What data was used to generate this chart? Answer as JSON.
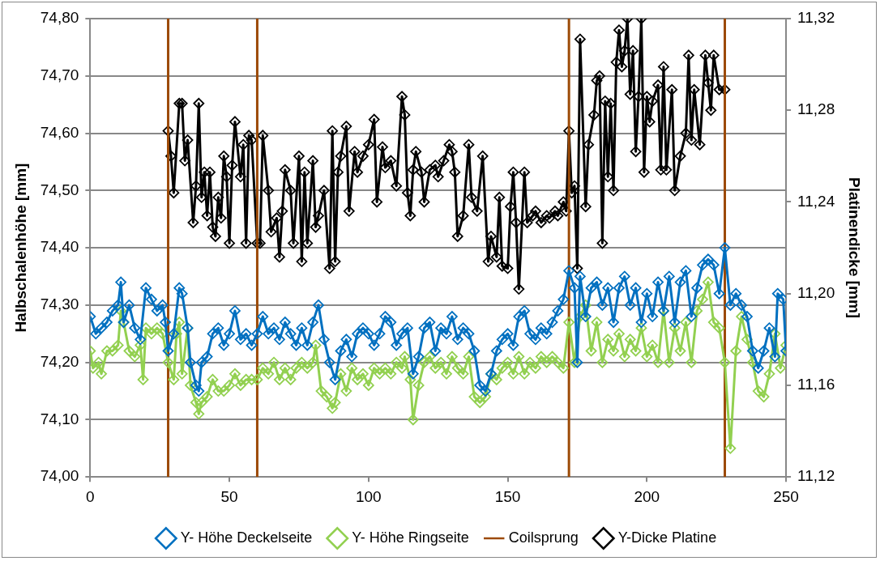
{
  "chart_data": {
    "type": "line",
    "ylabel": "Halbschalenhöhe [mm]",
    "y2label": "Platinendicke [mm]",
    "xlim": [
      0,
      250
    ],
    "xticks": [
      0,
      50,
      100,
      150,
      200,
      250
    ],
    "ylim": [
      74.0,
      74.8
    ],
    "yticks": [
      {
        "value": 74.0,
        "label": "74,00"
      },
      {
        "value": 74.1,
        "label": "74,10"
      },
      {
        "value": 74.2,
        "label": "74,20"
      },
      {
        "value": 74.3,
        "label": "74,30"
      },
      {
        "value": 74.4,
        "label": "74,40"
      },
      {
        "value": 74.5,
        "label": "74,50"
      },
      {
        "value": 74.6,
        "label": "74,60"
      },
      {
        "value": 74.7,
        "label": "74,70"
      },
      {
        "value": 74.8,
        "label": "74,80"
      }
    ],
    "y2lim": [
      11.12,
      11.32
    ],
    "y2ticks": [
      {
        "value": 11.12,
        "label": "11,12"
      },
      {
        "value": 11.16,
        "label": "11,16"
      },
      {
        "value": 11.2,
        "label": "11,20"
      },
      {
        "value": 11.24,
        "label": "11,24"
      },
      {
        "value": 11.28,
        "label": "11,28"
      },
      {
        "value": 11.32,
        "label": "11,32"
      }
    ],
    "grid": "y",
    "legend": "bottom",
    "marker": "diamond",
    "line_style": "solid",
    "series": [
      {
        "name": "Y- Höhe Deckelseite",
        "color": "#0070c0",
        "x": [
          0,
          2,
          4,
          6,
          8,
          10,
          11,
          12,
          14,
          16,
          18,
          20,
          22,
          24,
          26,
          27,
          28,
          30,
          32,
          33,
          35,
          36,
          38,
          39,
          40,
          42,
          44,
          46,
          48,
          50,
          52,
          54,
          56,
          58,
          60,
          62,
          64,
          66,
          68,
          70,
          72,
          74,
          76,
          78,
          80,
          82,
          84,
          86,
          88,
          90,
          92,
          94,
          96,
          98,
          100,
          102,
          104,
          106,
          108,
          110,
          112,
          114,
          116,
          118,
          120,
          122,
          124,
          126,
          128,
          130,
          132,
          134,
          136,
          138,
          140,
          142,
          144,
          146,
          148,
          150,
          152,
          154,
          156,
          158,
          160,
          162,
          164,
          166,
          168,
          170,
          172,
          174,
          175,
          176,
          178,
          180,
          182,
          184,
          186,
          188,
          190,
          192,
          194,
          196,
          198,
          200,
          202,
          204,
          206,
          208,
          210,
          212,
          214,
          216,
          218,
          220,
          222,
          224,
          226,
          228,
          230,
          232,
          234,
          236,
          238,
          240,
          242,
          244,
          246,
          247,
          249,
          250
        ],
        "values": [
          74.28,
          74.25,
          74.26,
          74.27,
          74.29,
          74.3,
          74.34,
          74.27,
          74.3,
          74.26,
          74.24,
          74.33,
          74.31,
          74.29,
          74.3,
          74.27,
          74.22,
          74.25,
          74.33,
          74.32,
          74.26,
          74.2,
          74.16,
          74.15,
          74.2,
          74.21,
          74.25,
          74.26,
          74.23,
          74.25,
          74.29,
          74.24,
          74.25,
          74.23,
          74.25,
          74.28,
          74.25,
          74.26,
          74.24,
          74.27,
          74.25,
          74.23,
          74.26,
          74.23,
          74.27,
          74.3,
          74.24,
          74.2,
          74.17,
          74.22,
          74.24,
          74.21,
          74.25,
          74.26,
          74.25,
          74.23,
          74.25,
          74.28,
          74.27,
          74.23,
          74.25,
          74.26,
          74.18,
          74.21,
          74.26,
          74.27,
          74.22,
          74.26,
          74.25,
          74.28,
          74.24,
          74.26,
          74.25,
          74.22,
          74.16,
          74.15,
          74.18,
          74.22,
          74.24,
          74.25,
          74.23,
          74.28,
          74.29,
          74.25,
          74.24,
          74.26,
          74.25,
          74.27,
          74.29,
          74.31,
          74.36,
          74.33,
          74.2,
          74.35,
          74.28,
          74.33,
          74.34,
          74.3,
          74.33,
          74.27,
          74.33,
          74.35,
          74.3,
          74.33,
          74.27,
          74.32,
          74.28,
          74.34,
          74.29,
          74.35,
          74.27,
          74.34,
          74.36,
          74.28,
          74.33,
          74.37,
          74.38,
          74.37,
          74.32,
          74.4,
          74.3,
          74.32,
          74.3,
          74.28,
          74.22,
          74.19,
          74.22,
          74.26,
          74.21,
          74.32,
          74.31,
          74.22
        ]
      },
      {
        "name": "Y- Höhe Ringseite",
        "color": "#92d050",
        "x": [
          0,
          1,
          3,
          4,
          6,
          8,
          10,
          11,
          12,
          14,
          16,
          18,
          19,
          20,
          22,
          24,
          26,
          28,
          30,
          31,
          32,
          33,
          35,
          36,
          38,
          39,
          40,
          42,
          44,
          46,
          48,
          50,
          52,
          54,
          56,
          58,
          60,
          62,
          64,
          66,
          68,
          70,
          72,
          74,
          76,
          78,
          80,
          81,
          83,
          85,
          87,
          88,
          90,
          92,
          94,
          96,
          98,
          100,
          102,
          104,
          106,
          108,
          110,
          112,
          113,
          115,
          116,
          118,
          120,
          122,
          124,
          126,
          128,
          130,
          132,
          134,
          136,
          138,
          140,
          142,
          144,
          146,
          148,
          150,
          152,
          154,
          156,
          158,
          160,
          162,
          164,
          166,
          168,
          170,
          172,
          174,
          176,
          178,
          180,
          182,
          184,
          186,
          188,
          190,
          192,
          194,
          196,
          198,
          200,
          202,
          204,
          206,
          208,
          210,
          212,
          214,
          216,
          218,
          220,
          222,
          224,
          226,
          228,
          230,
          232,
          234,
          236,
          238,
          240,
          242,
          244,
          246,
          248,
          250
        ],
        "values": [
          74.22,
          74.19,
          74.2,
          74.18,
          74.22,
          74.22,
          74.23,
          74.29,
          74.27,
          74.22,
          74.21,
          74.23,
          74.17,
          74.26,
          74.25,
          74.26,
          74.25,
          74.2,
          74.17,
          74.25,
          74.27,
          74.18,
          74.26,
          74.16,
          74.13,
          74.11,
          74.13,
          74.14,
          74.17,
          74.15,
          74.15,
          74.16,
          74.18,
          74.16,
          74.17,
          74.17,
          74.17,
          74.19,
          74.18,
          74.2,
          74.17,
          74.19,
          74.17,
          74.19,
          74.2,
          74.19,
          74.2,
          74.23,
          74.15,
          74.14,
          74.12,
          74.13,
          74.18,
          74.15,
          74.19,
          74.17,
          74.18,
          74.16,
          74.19,
          74.18,
          74.19,
          74.18,
          74.2,
          74.19,
          74.21,
          74.17,
          74.1,
          74.16,
          74.2,
          74.21,
          74.19,
          74.2,
          74.18,
          74.21,
          74.19,
          74.18,
          74.21,
          74.14,
          74.13,
          74.14,
          74.18,
          74.17,
          74.19,
          74.2,
          74.18,
          74.21,
          74.18,
          74.2,
          74.19,
          74.21,
          74.2,
          74.21,
          74.2,
          74.19,
          74.27,
          74.2,
          74.28,
          74.3,
          74.22,
          74.27,
          74.2,
          74.24,
          74.22,
          74.25,
          74.21,
          74.24,
          74.22,
          74.26,
          74.21,
          74.23,
          74.2,
          74.29,
          74.2,
          74.26,
          74.22,
          74.27,
          74.2,
          74.29,
          74.31,
          74.34,
          74.27,
          74.26,
          74.2,
          74.05,
          74.22,
          74.28,
          74.24,
          74.2,
          74.15,
          74.14,
          74.18,
          74.25,
          74.19,
          74.23
        ]
      },
      {
        "name": "Coilsprung",
        "color": "#9c4a06",
        "marker": "none",
        "x": [
          28,
          28
        ],
        "values": [
          74.0,
          74.8
        ]
      },
      {
        "color": "#9c4a06",
        "marker": "none",
        "x": [
          60,
          60
        ],
        "values": [
          74.0,
          74.8
        ]
      },
      {
        "color": "#9c4a06",
        "marker": "none",
        "x": [
          172,
          172
        ],
        "values": [
          74.0,
          74.8
        ]
      },
      {
        "color": "#9c4a06",
        "marker": "none",
        "x": [
          228,
          228
        ],
        "values": [
          74.0,
          74.8
        ]
      },
      {
        "name": "Y-Dicke Platine",
        "color": "#000000",
        "axis": "y2",
        "x": [
          28,
          29,
          30,
          32,
          33,
          34,
          35,
          37,
          38,
          39,
          40,
          41,
          42,
          43,
          44,
          45,
          46,
          47,
          48,
          49,
          50,
          51,
          52,
          54,
          55,
          56,
          57,
          58,
          60,
          61,
          62,
          64,
          65,
          67,
          68,
          69,
          70,
          72,
          73,
          75,
          76,
          77,
          78,
          80,
          81,
          82,
          84,
          86,
          87,
          88,
          89,
          90,
          92,
          93,
          95,
          96,
          98,
          100,
          102,
          103,
          105,
          106,
          108,
          110,
          112,
          113,
          114,
          115,
          116,
          117,
          119,
          120,
          122,
          124,
          125,
          127,
          129,
          130,
          131,
          132,
          134,
          136,
          137,
          139,
          141,
          143,
          144,
          146,
          147,
          148,
          150,
          151,
          152,
          153,
          154,
          156,
          157,
          159,
          160,
          162,
          164,
          165,
          167,
          168,
          170,
          171,
          172,
          173,
          174,
          175,
          176,
          178,
          179,
          181,
          182,
          183,
          184,
          185,
          186,
          187,
          188,
          189,
          190,
          191,
          192,
          193,
          194,
          195,
          196,
          197,
          198,
          199,
          200,
          201,
          202,
          204,
          205,
          206,
          207,
          209,
          210,
          212,
          214,
          215,
          216,
          217,
          219,
          221,
          222,
          223,
          224,
          226,
          228
        ],
        "values": [
          11.271,
          11.26,
          11.244,
          11.283,
          11.283,
          11.258,
          11.267,
          11.231,
          11.247,
          11.283,
          11.242,
          11.253,
          11.234,
          11.253,
          11.229,
          11.225,
          11.242,
          11.233,
          11.26,
          11.251,
          11.222,
          11.256,
          11.275,
          11.251,
          11.265,
          11.222,
          11.269,
          11.267,
          11.222,
          11.222,
          11.269,
          11.245,
          11.227,
          11.233,
          11.216,
          11.236,
          11.254,
          11.245,
          11.222,
          11.26,
          11.214,
          11.253,
          11.222,
          11.258,
          11.229,
          11.234,
          11.245,
          11.211,
          11.271,
          11.214,
          11.253,
          11.26,
          11.273,
          11.236,
          11.262,
          11.253,
          11.26,
          11.265,
          11.276,
          11.24,
          11.264,
          11.255,
          11.258,
          11.247,
          11.286,
          11.278,
          11.244,
          11.234,
          11.254,
          11.262,
          11.253,
          11.24,
          11.254,
          11.256,
          11.251,
          11.258,
          11.265,
          11.262,
          11.253,
          11.225,
          11.234,
          11.265,
          11.242,
          11.236,
          11.26,
          11.214,
          11.225,
          11.216,
          11.242,
          11.212,
          11.211,
          11.238,
          11.253,
          11.231,
          11.202,
          11.253,
          11.231,
          11.234,
          11.236,
          11.231,
          11.234,
          11.233,
          11.236,
          11.234,
          11.24,
          11.236,
          11.271,
          11.244,
          11.247,
          11.211,
          11.311,
          11.238,
          11.265,
          11.278,
          11.293,
          11.295,
          11.222,
          11.284,
          11.251,
          11.283,
          11.245,
          11.301,
          11.315,
          11.299,
          11.306,
          11.32,
          11.287,
          11.306,
          11.262,
          11.286,
          11.32,
          11.253,
          11.286,
          11.275,
          11.284,
          11.291,
          11.254,
          11.299,
          11.254,
          11.289,
          11.245,
          11.26,
          11.27,
          11.304,
          11.267,
          11.289,
          11.265,
          11.304,
          11.292,
          11.28,
          11.304,
          11.289,
          11.289
        ]
      }
    ]
  }
}
